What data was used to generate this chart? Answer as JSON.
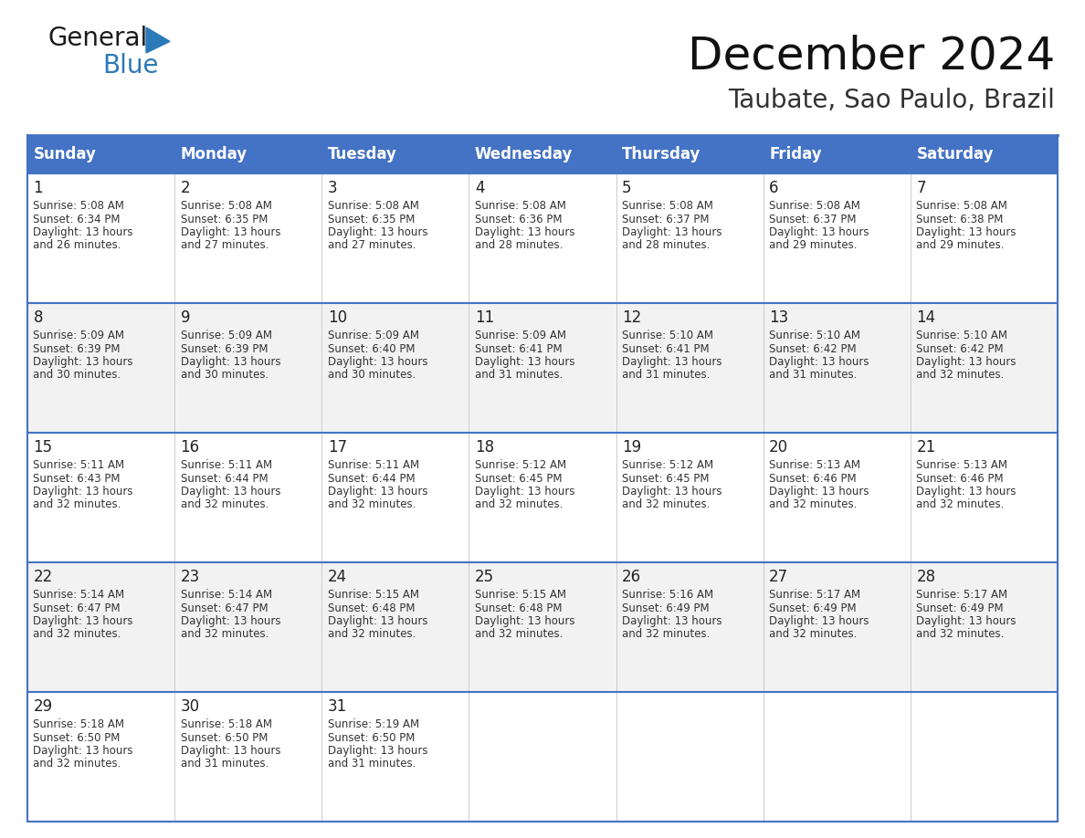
{
  "title": "December 2024",
  "subtitle": "Taubate, Sao Paulo, Brazil",
  "header_color": "#4472C4",
  "header_text_color": "#FFFFFF",
  "cell_bg_even": "#FFFFFF",
  "cell_bg_odd": "#F2F2F2",
  "border_color": "#4472C4",
  "row_line_color": "#4472C4",
  "days_of_week": [
    "Sunday",
    "Monday",
    "Tuesday",
    "Wednesday",
    "Thursday",
    "Friday",
    "Saturday"
  ],
  "days": [
    {
      "day": 1,
      "col": 0,
      "row": 0,
      "sunrise": "5:08 AM",
      "sunset": "6:34 PM",
      "daylight_h": "13 hours",
      "daylight_m": "and 26 minutes."
    },
    {
      "day": 2,
      "col": 1,
      "row": 0,
      "sunrise": "5:08 AM",
      "sunset": "6:35 PM",
      "daylight_h": "13 hours",
      "daylight_m": "and 27 minutes."
    },
    {
      "day": 3,
      "col": 2,
      "row": 0,
      "sunrise": "5:08 AM",
      "sunset": "6:35 PM",
      "daylight_h": "13 hours",
      "daylight_m": "and 27 minutes."
    },
    {
      "day": 4,
      "col": 3,
      "row": 0,
      "sunrise": "5:08 AM",
      "sunset": "6:36 PM",
      "daylight_h": "13 hours",
      "daylight_m": "and 28 minutes."
    },
    {
      "day": 5,
      "col": 4,
      "row": 0,
      "sunrise": "5:08 AM",
      "sunset": "6:37 PM",
      "daylight_h": "13 hours",
      "daylight_m": "and 28 minutes."
    },
    {
      "day": 6,
      "col": 5,
      "row": 0,
      "sunrise": "5:08 AM",
      "sunset": "6:37 PM",
      "daylight_h": "13 hours",
      "daylight_m": "and 29 minutes."
    },
    {
      "day": 7,
      "col": 6,
      "row": 0,
      "sunrise": "5:08 AM",
      "sunset": "6:38 PM",
      "daylight_h": "13 hours",
      "daylight_m": "and 29 minutes."
    },
    {
      "day": 8,
      "col": 0,
      "row": 1,
      "sunrise": "5:09 AM",
      "sunset": "6:39 PM",
      "daylight_h": "13 hours",
      "daylight_m": "and 30 minutes."
    },
    {
      "day": 9,
      "col": 1,
      "row": 1,
      "sunrise": "5:09 AM",
      "sunset": "6:39 PM",
      "daylight_h": "13 hours",
      "daylight_m": "and 30 minutes."
    },
    {
      "day": 10,
      "col": 2,
      "row": 1,
      "sunrise": "5:09 AM",
      "sunset": "6:40 PM",
      "daylight_h": "13 hours",
      "daylight_m": "and 30 minutes."
    },
    {
      "day": 11,
      "col": 3,
      "row": 1,
      "sunrise": "5:09 AM",
      "sunset": "6:41 PM",
      "daylight_h": "13 hours",
      "daylight_m": "and 31 minutes."
    },
    {
      "day": 12,
      "col": 4,
      "row": 1,
      "sunrise": "5:10 AM",
      "sunset": "6:41 PM",
      "daylight_h": "13 hours",
      "daylight_m": "and 31 minutes."
    },
    {
      "day": 13,
      "col": 5,
      "row": 1,
      "sunrise": "5:10 AM",
      "sunset": "6:42 PM",
      "daylight_h": "13 hours",
      "daylight_m": "and 31 minutes."
    },
    {
      "day": 14,
      "col": 6,
      "row": 1,
      "sunrise": "5:10 AM",
      "sunset": "6:42 PM",
      "daylight_h": "13 hours",
      "daylight_m": "and 32 minutes."
    },
    {
      "day": 15,
      "col": 0,
      "row": 2,
      "sunrise": "5:11 AM",
      "sunset": "6:43 PM",
      "daylight_h": "13 hours",
      "daylight_m": "and 32 minutes."
    },
    {
      "day": 16,
      "col": 1,
      "row": 2,
      "sunrise": "5:11 AM",
      "sunset": "6:44 PM",
      "daylight_h": "13 hours",
      "daylight_m": "and 32 minutes."
    },
    {
      "day": 17,
      "col": 2,
      "row": 2,
      "sunrise": "5:11 AM",
      "sunset": "6:44 PM",
      "daylight_h": "13 hours",
      "daylight_m": "and 32 minutes."
    },
    {
      "day": 18,
      "col": 3,
      "row": 2,
      "sunrise": "5:12 AM",
      "sunset": "6:45 PM",
      "daylight_h": "13 hours",
      "daylight_m": "and 32 minutes."
    },
    {
      "day": 19,
      "col": 4,
      "row": 2,
      "sunrise": "5:12 AM",
      "sunset": "6:45 PM",
      "daylight_h": "13 hours",
      "daylight_m": "and 32 minutes."
    },
    {
      "day": 20,
      "col": 5,
      "row": 2,
      "sunrise": "5:13 AM",
      "sunset": "6:46 PM",
      "daylight_h": "13 hours",
      "daylight_m": "and 32 minutes."
    },
    {
      "day": 21,
      "col": 6,
      "row": 2,
      "sunrise": "5:13 AM",
      "sunset": "6:46 PM",
      "daylight_h": "13 hours",
      "daylight_m": "and 32 minutes."
    },
    {
      "day": 22,
      "col": 0,
      "row": 3,
      "sunrise": "5:14 AM",
      "sunset": "6:47 PM",
      "daylight_h": "13 hours",
      "daylight_m": "and 32 minutes."
    },
    {
      "day": 23,
      "col": 1,
      "row": 3,
      "sunrise": "5:14 AM",
      "sunset": "6:47 PM",
      "daylight_h": "13 hours",
      "daylight_m": "and 32 minutes."
    },
    {
      "day": 24,
      "col": 2,
      "row": 3,
      "sunrise": "5:15 AM",
      "sunset": "6:48 PM",
      "daylight_h": "13 hours",
      "daylight_m": "and 32 minutes."
    },
    {
      "day": 25,
      "col": 3,
      "row": 3,
      "sunrise": "5:15 AM",
      "sunset": "6:48 PM",
      "daylight_h": "13 hours",
      "daylight_m": "and 32 minutes."
    },
    {
      "day": 26,
      "col": 4,
      "row": 3,
      "sunrise": "5:16 AM",
      "sunset": "6:49 PM",
      "daylight_h": "13 hours",
      "daylight_m": "and 32 minutes."
    },
    {
      "day": 27,
      "col": 5,
      "row": 3,
      "sunrise": "5:17 AM",
      "sunset": "6:49 PM",
      "daylight_h": "13 hours",
      "daylight_m": "and 32 minutes."
    },
    {
      "day": 28,
      "col": 6,
      "row": 3,
      "sunrise": "5:17 AM",
      "sunset": "6:49 PM",
      "daylight_h": "13 hours",
      "daylight_m": "and 32 minutes."
    },
    {
      "day": 29,
      "col": 0,
      "row": 4,
      "sunrise": "5:18 AM",
      "sunset": "6:50 PM",
      "daylight_h": "13 hours",
      "daylight_m": "and 32 minutes."
    },
    {
      "day": 30,
      "col": 1,
      "row": 4,
      "sunrise": "5:18 AM",
      "sunset": "6:50 PM",
      "daylight_h": "13 hours",
      "daylight_m": "and 31 minutes."
    },
    {
      "day": 31,
      "col": 2,
      "row": 4,
      "sunrise": "5:19 AM",
      "sunset": "6:50 PM",
      "daylight_h": "13 hours",
      "daylight_m": "and 31 minutes."
    }
  ],
  "logo_text_general": "General",
  "logo_text_blue": "Blue",
  "logo_color_general": "#1a1a1a",
  "logo_color_blue": "#2b7ab8",
  "logo_triangle_color": "#2b7ab8",
  "title_fontsize": 36,
  "subtitle_fontsize": 20,
  "header_fontsize": 12,
  "day_num_fontsize": 12,
  "cell_text_fontsize": 8.5
}
